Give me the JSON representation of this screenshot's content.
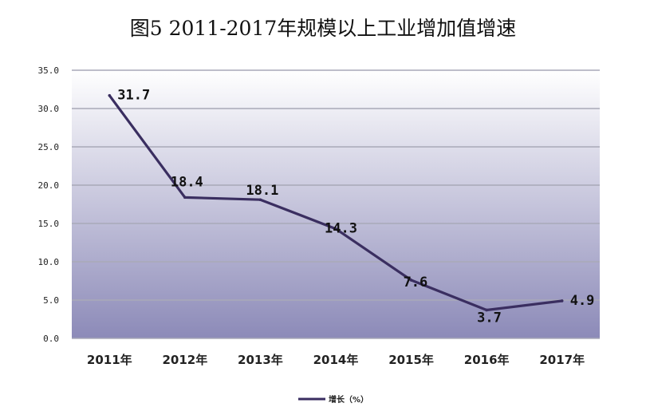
{
  "chart_data": {
    "type": "line",
    "title": "图5 2011-2017年规模以上工业增加值增速",
    "categories": [
      "2011年",
      "2012年",
      "2013年",
      "2014年",
      "2015年",
      "2016年",
      "2017年"
    ],
    "series": [
      {
        "name": "增长（%）",
        "values": [
          31.7,
          18.4,
          18.1,
          14.3,
          7.6,
          3.7,
          4.9
        ]
      }
    ],
    "data_labels": [
      "31.7",
      "18.4",
      "18.1",
      "14.3",
      "7.6",
      "3.7",
      "4.9"
    ],
    "yticks": [
      "0.0",
      "5.0",
      "10.0",
      "15.0",
      "20.0",
      "25.0",
      "30.0",
      "35.0"
    ],
    "ylim": [
      0,
      35
    ],
    "xlabel": "",
    "ylabel": "",
    "grid": true,
    "legend_position": "bottom",
    "colors": {
      "line": "#3a2e60",
      "plot_top": "#ffffff",
      "plot_bottom": "#8c8ab8",
      "grid": "#a9a9b8"
    }
  }
}
